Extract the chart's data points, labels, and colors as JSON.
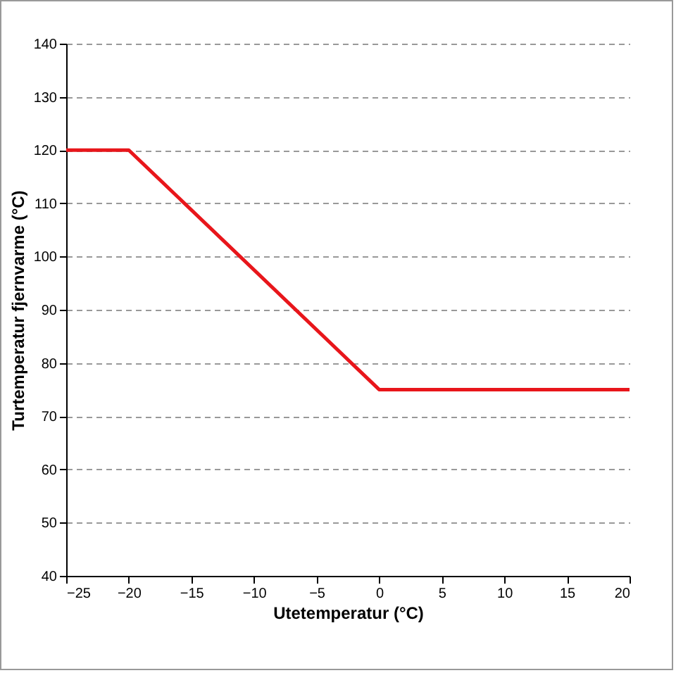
{
  "chart_data": {
    "type": "line",
    "xlabel": "Utetemperatur (°C)",
    "ylabel": "Turtemperatur fjernvarme (°C)",
    "x": [
      -25,
      -20,
      0,
      20
    ],
    "series": [
      {
        "color": "#e8161b",
        "values": [
          120,
          120,
          75,
          75
        ]
      }
    ],
    "xlim": [
      -25,
      20
    ],
    "xticks": [
      -25,
      -20,
      -15,
      -10,
      -5,
      0,
      5,
      10,
      15,
      20
    ],
    "ylim": [
      40,
      140
    ],
    "yticks": [
      40,
      50,
      60,
      70,
      80,
      90,
      100,
      110,
      120,
      130,
      140
    ],
    "grid": "y",
    "line_style": "solid",
    "marker": "none"
  }
}
